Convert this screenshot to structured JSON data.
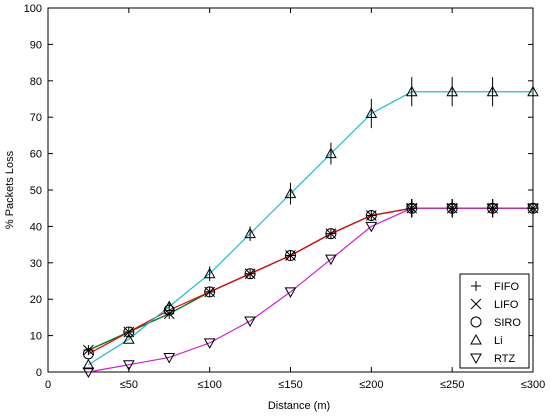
{
  "chart_data": {
    "type": "line",
    "title": "",
    "xlabel": "Distance (m)",
    "ylabel": "% Packets Loss",
    "x_tick_labels": [
      "0",
      "≤50",
      "≤100",
      "≤150",
      "≤200",
      "≤250",
      "≤300"
    ],
    "x_tick_values": [
      0,
      50,
      100,
      150,
      200,
      250,
      300
    ],
    "y_tick_labels": [
      "0",
      "10",
      "20",
      "30",
      "40",
      "50",
      "60",
      "70",
      "80",
      "90",
      "100"
    ],
    "y_tick_values": [
      0,
      10,
      20,
      30,
      40,
      50,
      60,
      70,
      80,
      90,
      100
    ],
    "xlim": [
      0,
      300
    ],
    "ylim": [
      0,
      100
    ],
    "grid": false,
    "legend_position": "bottom-right",
    "x": [
      25,
      50,
      75,
      100,
      125,
      150,
      175,
      200,
      225,
      250,
      275,
      300
    ],
    "series": [
      {
        "name": "FIFO",
        "marker": "plus",
        "color": "#0000ee",
        "values": [
          6,
          11,
          16,
          22,
          27,
          32,
          38,
          43,
          45,
          45,
          45,
          45
        ],
        "error": [
          0,
          0,
          0,
          0,
          0,
          0,
          0,
          0,
          2.5,
          2.5,
          2.5,
          0
        ]
      },
      {
        "name": "LIFO",
        "marker": "x",
        "color": "#008800",
        "values": [
          6,
          11,
          16,
          22,
          27,
          32,
          38,
          43,
          45,
          45,
          45,
          45
        ],
        "error": [
          0,
          0,
          0,
          0,
          0,
          0,
          0,
          0,
          2.5,
          2.5,
          2.5,
          0
        ]
      },
      {
        "name": "SIRO",
        "marker": "circle",
        "color": "#ee0000",
        "values": [
          5,
          11,
          17,
          22,
          27,
          32,
          38,
          43,
          45,
          45,
          45,
          45
        ],
        "error": [
          0,
          0,
          0,
          0,
          0,
          0,
          0,
          0,
          2.5,
          2.5,
          2.5,
          0
        ]
      },
      {
        "name": "Li",
        "marker": "triangle-up",
        "color": "#22bbcc",
        "values": [
          2,
          9,
          18,
          27,
          38,
          49,
          60,
          71,
          77,
          77,
          77,
          77
        ],
        "error": [
          0,
          0,
          1,
          2,
          2,
          3,
          3,
          4,
          4,
          4,
          4,
          0
        ]
      },
      {
        "name": "RTZ",
        "marker": "triangle-down",
        "color": "#cc22cc",
        "values": [
          0,
          2,
          4,
          8,
          14,
          22,
          31,
          40,
          45,
          45,
          45,
          45
        ],
        "error": [
          0,
          0,
          0,
          0,
          0,
          0,
          0,
          0,
          2.5,
          2.5,
          2.5,
          0
        ]
      }
    ]
  }
}
